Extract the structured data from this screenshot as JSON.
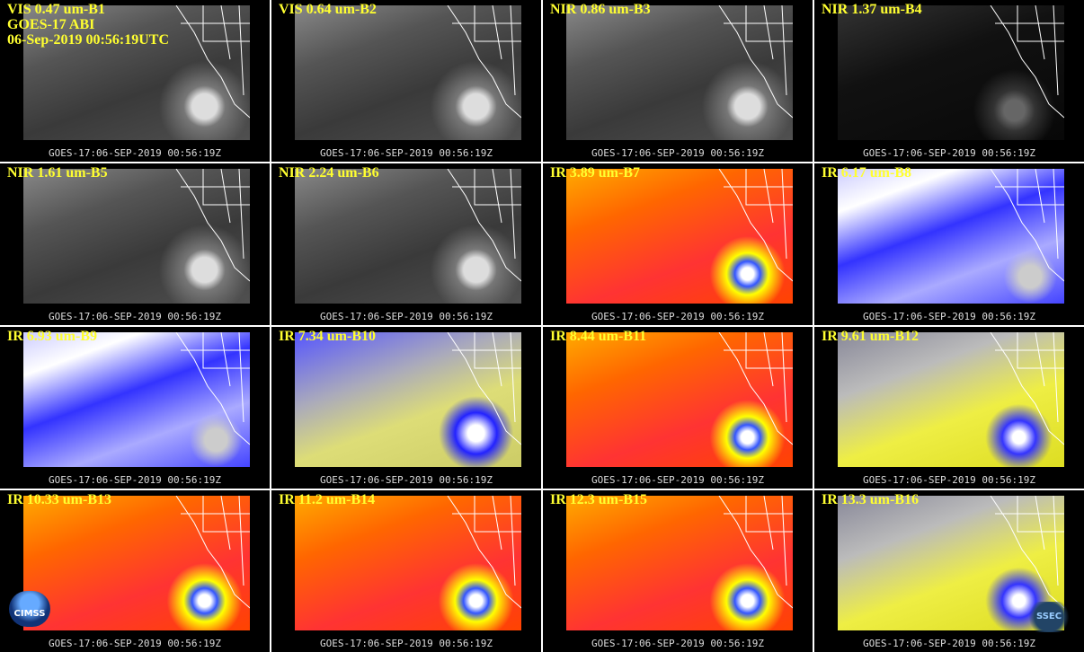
{
  "panels": [
    {
      "label": "VIS 0.47 um-B1",
      "footer": "GOES-17:06-SEP-2019 00:56:19Z"
    },
    {
      "label": "VIS 0.64 um-B2",
      "footer": "GOES-17:06-SEP-2019 00:56:19Z"
    },
    {
      "label": "NIR 0.86 um-B3",
      "footer": "GOES-17:06-SEP-2019 00:56:19Z"
    },
    {
      "label": "NIR 1.37 um-B4",
      "footer": "GOES-17:06-SEP-2019 00:56:19Z"
    },
    {
      "label": "NIR 1.61 um-B5",
      "footer": "GOES-17:06-SEP-2019 00:56:19Z"
    },
    {
      "label": "NIR 2.24 um-B6",
      "footer": "GOES-17:06-SEP-2019 00:56:19Z"
    },
    {
      "label": "IR 3.89 um-B7",
      "footer": "GOES-17:06-SEP-2019 00:56:19Z"
    },
    {
      "label": "IR 6.17 um-B8",
      "footer": "GOES-17:06-SEP-2019 00:56:19Z"
    },
    {
      "label": "IR 6.93 um-B9",
      "footer": "GOES-17:06-SEP-2019 00:56:19Z"
    },
    {
      "label": "IR 7.34 um-B10",
      "footer": "GOES-17:06-SEP-2019 00:56:19Z"
    },
    {
      "label": "IR 8.44 um-B11",
      "footer": "GOES-17:06-SEP-2019 00:56:19Z"
    },
    {
      "label": "IR 9.61 um-B12",
      "footer": "GOES-17:06-SEP-2019 00:56:19Z"
    },
    {
      "label": "IR 10.33 um-B13",
      "footer": "GOES-17:06-SEP-2019 00:56:19Z"
    },
    {
      "label": "IR 11.2 um-B14",
      "footer": "GOES-17:06-SEP-2019 00:56:19Z"
    },
    {
      "label": "IR 12.3 um-B15",
      "footer": "GOES-17:06-SEP-2019 00:56:19Z"
    },
    {
      "label": "IR 13.3 um-B16",
      "footer": "GOES-17:06-SEP-2019 00:56:19Z"
    }
  ],
  "info": [
    "GOES-17 ABI",
    "06-Sep-2019 00:56:19UTC"
  ],
  "logos": {
    "left": "CIMSS",
    "right": "SSEC"
  }
}
